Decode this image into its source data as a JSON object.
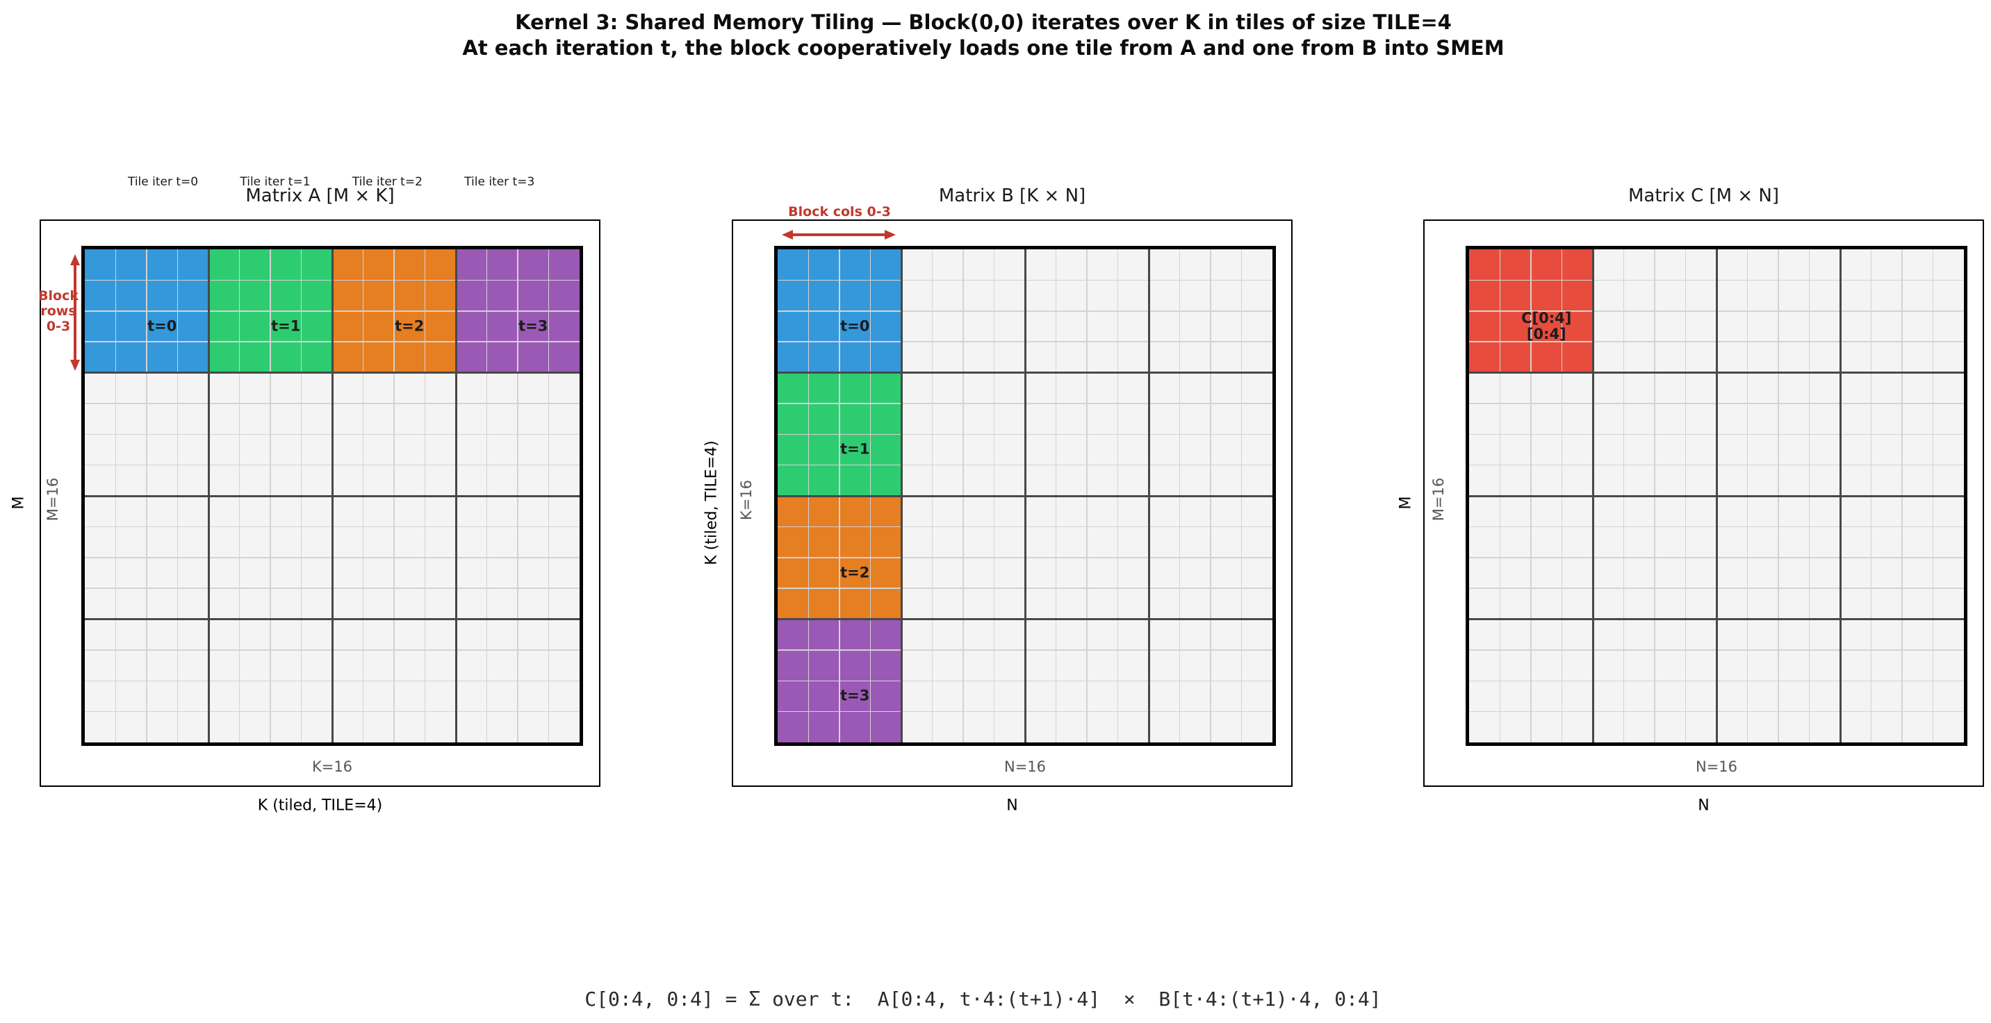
{
  "figure_title": {
    "line1": "Kernel 3: Shared Memory Tiling — Block(0,0) iterates over K in tiles of size TILE=4",
    "line2": "At each iteration t, the block cooperatively loads one tile from A and one from B into SMEM"
  },
  "palette": {
    "t0": "#3498db",
    "t1": "#2ecc71",
    "t2": "#e67e22",
    "t3": "#9b59b6",
    "c_tile": "#e74c3c",
    "annotation_red": "#c0392b",
    "cell_bg": "#f4f4f4",
    "grid_minor": "#d3d3d3",
    "grid_major": "#484848",
    "matrix_border": "#000000"
  },
  "panels": [
    {
      "id": "A",
      "title": "Matrix A  [M × K]",
      "header_labels": [
        "Tile iter t=0",
        "Tile iter t=1",
        "Tile iter t=2",
        "Tile iter t=3"
      ],
      "annotation": {
        "text_lines": [
          "Block",
          "rows",
          "0-3"
        ],
        "arrow": "vertical"
      },
      "ylabel": "M",
      "inner_ylabel": "M=16",
      "xlabel": "K (tiled, TILE=4)",
      "inner_xlabel": "K=16",
      "grid": {
        "rows": 16,
        "cols": 16,
        "tile_size": 4
      },
      "tiles": [
        {
          "row": 0,
          "col": 0,
          "color": "t0",
          "label": "t=0"
        },
        {
          "row": 0,
          "col": 1,
          "color": "t1",
          "label": "t=1"
        },
        {
          "row": 0,
          "col": 2,
          "color": "t2",
          "label": "t=2"
        },
        {
          "row": 0,
          "col": 3,
          "color": "t3",
          "label": "t=3"
        }
      ]
    },
    {
      "id": "B",
      "title": "Matrix B  [K × N]",
      "header_labels": [],
      "annotation": {
        "text_lines": [
          "Block cols 0-3"
        ],
        "arrow": "horizontal"
      },
      "ylabel": "K (tiled, TILE=4)",
      "inner_ylabel": "K=16",
      "xlabel": "N",
      "inner_xlabel": "N=16",
      "grid": {
        "rows": 16,
        "cols": 16,
        "tile_size": 4
      },
      "tiles": [
        {
          "row": 0,
          "col": 0,
          "color": "t0",
          "label": "t=0"
        },
        {
          "row": 1,
          "col": 0,
          "color": "t1",
          "label": "t=1"
        },
        {
          "row": 2,
          "col": 0,
          "color": "t2",
          "label": "t=2"
        },
        {
          "row": 3,
          "col": 0,
          "color": "t3",
          "label": "t=3"
        }
      ]
    },
    {
      "id": "C",
      "title": "Matrix C  [M × N]",
      "header_labels": [],
      "annotation": null,
      "ylabel": "M",
      "inner_ylabel": "M=16",
      "xlabel": "N",
      "inner_xlabel": "N=16",
      "grid": {
        "rows": 16,
        "cols": 16,
        "tile_size": 4
      },
      "tiles": [
        {
          "row": 0,
          "col": 0,
          "color": "c_tile",
          "label": "C[0:4]\n[0:4]"
        }
      ]
    }
  ],
  "formula": "C[0:4, 0:4] = Σ over t:  A[0:4, t·4:(t+1)·4]  ×  B[t·4:(t+1)·4, 0:4]"
}
